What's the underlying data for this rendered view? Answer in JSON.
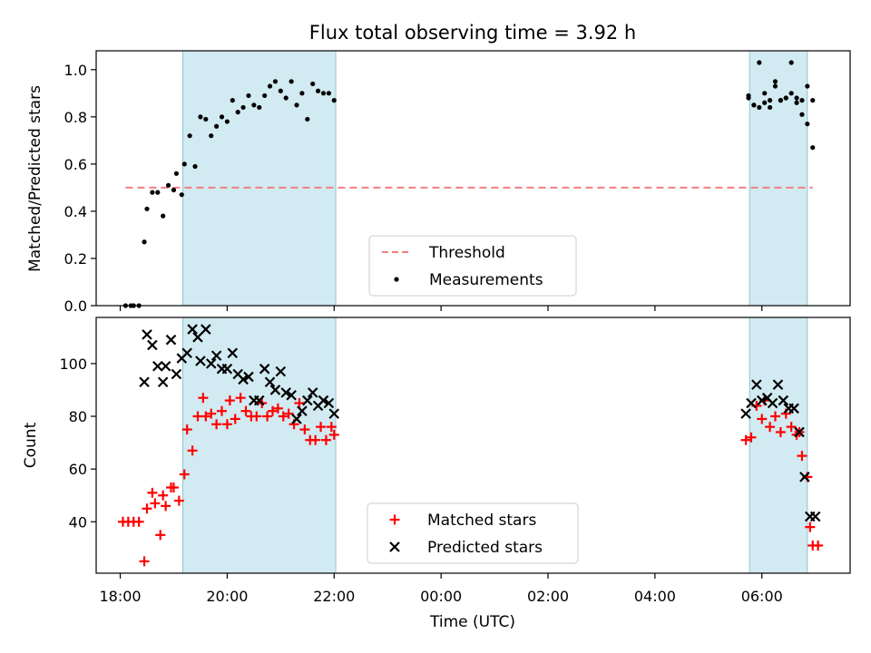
{
  "chart_data": {
    "type": "scatter",
    "title": "Flux total observing time = 3.92 h",
    "xlabel": "Time (UTC)",
    "x_ticks": [
      "18:00",
      "20:00",
      "22:00",
      "00:00",
      "02:00",
      "04:00",
      "06:00"
    ],
    "xlim": [
      17.55,
      31.65
    ],
    "shaded_intervals": [
      [
        19.17,
        22.03
      ],
      [
        29.77,
        30.85
      ]
    ],
    "colors": {
      "shade": "#add8e6",
      "threshold": "#f08080",
      "measurements": "#000000",
      "matched": "#ff0000",
      "predicted": "#000000"
    },
    "panels": [
      {
        "ylabel": "Matched/Predicted stars",
        "ylim": [
          0,
          1.08
        ],
        "y_ticks": [
          0.0,
          0.2,
          0.4,
          0.6,
          0.8,
          1.0
        ],
        "y_tick_labels": [
          "0.0",
          "0.2",
          "0.4",
          "0.6",
          "0.8",
          "1.0"
        ],
        "legend": {
          "placement": "bottom-center",
          "entries": [
            {
              "label": "Threshold",
              "marker": "dash"
            },
            {
              "label": "Measurements",
              "marker": "dot"
            }
          ]
        },
        "series": [
          {
            "name": "Threshold",
            "kind": "line",
            "x": [
              18.1,
              30.95
            ],
            "y": [
              0.5,
              0.5
            ]
          },
          {
            "name": "Measurements",
            "kind": "dot",
            "x": [
              18.1,
              18.2,
              18.25,
              18.35,
              18.45,
              18.5,
              18.6,
              18.7,
              18.8,
              18.9,
              19.0,
              19.05,
              19.15,
              19.2,
              19.3,
              19.4,
              19.5,
              19.6,
              19.7,
              19.8,
              19.9,
              20.0,
              20.1,
              20.2,
              20.3,
              20.4,
              20.5,
              20.6,
              20.7,
              20.8,
              20.9,
              21.0,
              21.1,
              21.2,
              21.3,
              21.4,
              21.5,
              21.6,
              21.7,
              21.8,
              21.9,
              22.0,
              29.75,
              29.85,
              29.95,
              30.05,
              30.15,
              30.25,
              30.35,
              30.45,
              30.55,
              30.65,
              30.75,
              30.85,
              30.95
            ],
            "y": [
              0.0,
              0.0,
              0.0,
              0.0,
              0.27,
              0.41,
              0.48,
              0.48,
              0.38,
              0.51,
              0.49,
              0.56,
              0.47,
              0.6,
              0.72,
              0.59,
              0.8,
              0.79,
              0.72,
              0.76,
              0.8,
              0.78,
              0.87,
              0.82,
              0.84,
              0.89,
              0.85,
              0.84,
              0.89,
              0.93,
              0.95,
              0.91,
              0.88,
              0.95,
              0.85,
              0.9,
              0.79,
              0.94,
              0.91,
              0.9,
              0.9,
              0.87,
              0.89,
              0.85,
              0.84,
              0.9,
              0.84,
              0.95,
              0.87,
              0.88,
              1.03,
              0.86,
              0.87,
              0.93,
              0.87
            ],
            "x_b": [
              29.75,
              29.85,
              29.95,
              30.05,
              30.15,
              30.25,
              30.35,
              30.45,
              30.55,
              30.65,
              30.75,
              30.85,
              30.95
            ],
            "y_b": [
              0.88,
              0.85,
              1.03,
              0.86,
              0.87,
              0.93,
              0.87,
              0.88,
              0.9,
              0.88,
              0.81,
              0.77,
              0.67
            ]
          }
        ]
      },
      {
        "ylabel": "Count",
        "ylim": [
          20.5,
          117.5
        ],
        "y_ticks": [
          40,
          60,
          80,
          100
        ],
        "y_tick_labels": [
          "40",
          "60",
          "80",
          "100"
        ],
        "legend": {
          "placement": "bottom-center",
          "entries": [
            {
              "label": "Matched stars",
              "marker": "plus"
            },
            {
              "label": "Predicted stars",
              "marker": "x"
            }
          ]
        },
        "series": [
          {
            "name": "Matched stars",
            "kind": "plus",
            "x": [
              18.05,
              18.15,
              18.25,
              18.35,
              18.45,
              18.5,
              18.6,
              18.65,
              18.75,
              18.8,
              18.85,
              18.95,
              19.0,
              19.1,
              19.2,
              19.25,
              19.35,
              19.45,
              19.55,
              19.6,
              19.7,
              19.8,
              19.9,
              20.0,
              20.05,
              20.15,
              20.25,
              20.35,
              20.45,
              20.55,
              20.65,
              20.75,
              20.85,
              20.95,
              21.05,
              21.15,
              21.25,
              21.35,
              21.45,
              21.55,
              21.65,
              21.75,
              21.85,
              21.95,
              22.0,
              29.7,
              29.8,
              29.9,
              30.0,
              30.05,
              30.15,
              30.25,
              30.35,
              30.45,
              30.55,
              30.65,
              30.7,
              30.75,
              30.85,
              30.9,
              30.95,
              31.05
            ],
            "y": [
              40,
              40,
              40,
              40,
              25,
              45,
              51,
              47,
              35,
              50,
              46,
              53,
              53,
              48,
              58,
              75,
              67,
              80,
              87,
              80,
              81,
              77,
              82,
              77,
              86,
              79,
              87,
              82,
              80,
              80,
              85,
              80,
              82,
              83,
              80,
              81,
              77,
              85,
              75,
              71,
              71,
              76,
              71,
              76,
              73,
              71,
              72,
              84,
              79,
              86,
              76,
              80,
              74,
              81,
              76,
              73,
              74,
              65,
              57,
              38,
              31,
              31
            ]
          },
          {
            "name": "Predicted stars",
            "kind": "x",
            "x": [
              18.45,
              18.5,
              18.6,
              18.7,
              18.8,
              18.85,
              18.95,
              19.05,
              19.15,
              19.25,
              19.35,
              19.45,
              19.5,
              19.6,
              19.7,
              19.8,
              19.9,
              20.0,
              20.1,
              20.2,
              20.3,
              20.4,
              20.5,
              20.6,
              20.7,
              20.8,
              20.9,
              21.0,
              21.1,
              21.2,
              21.3,
              21.4,
              21.5,
              21.6,
              21.7,
              21.8,
              21.9,
              22.0,
              29.7,
              29.8,
              29.9,
              30.0,
              30.1,
              30.2,
              30.3,
              30.4,
              30.5,
              30.6,
              30.7,
              30.8,
              30.9,
              31.0
            ],
            "y": [
              93,
              111,
              107,
              99,
              93,
              99,
              109,
              96,
              102,
              104,
              113,
              110,
              101,
              113,
              100,
              103,
              98,
              98,
              104,
              96,
              94,
              95,
              86,
              86,
              98,
              93,
              90,
              97,
              89,
              88,
              79,
              82,
              86,
              89,
              84,
              86,
              85,
              81,
              81,
              85,
              92,
              86,
              87,
              85,
              92,
              86,
              83,
              83,
              74,
              57,
              42,
              42
            ]
          }
        ]
      }
    ]
  }
}
